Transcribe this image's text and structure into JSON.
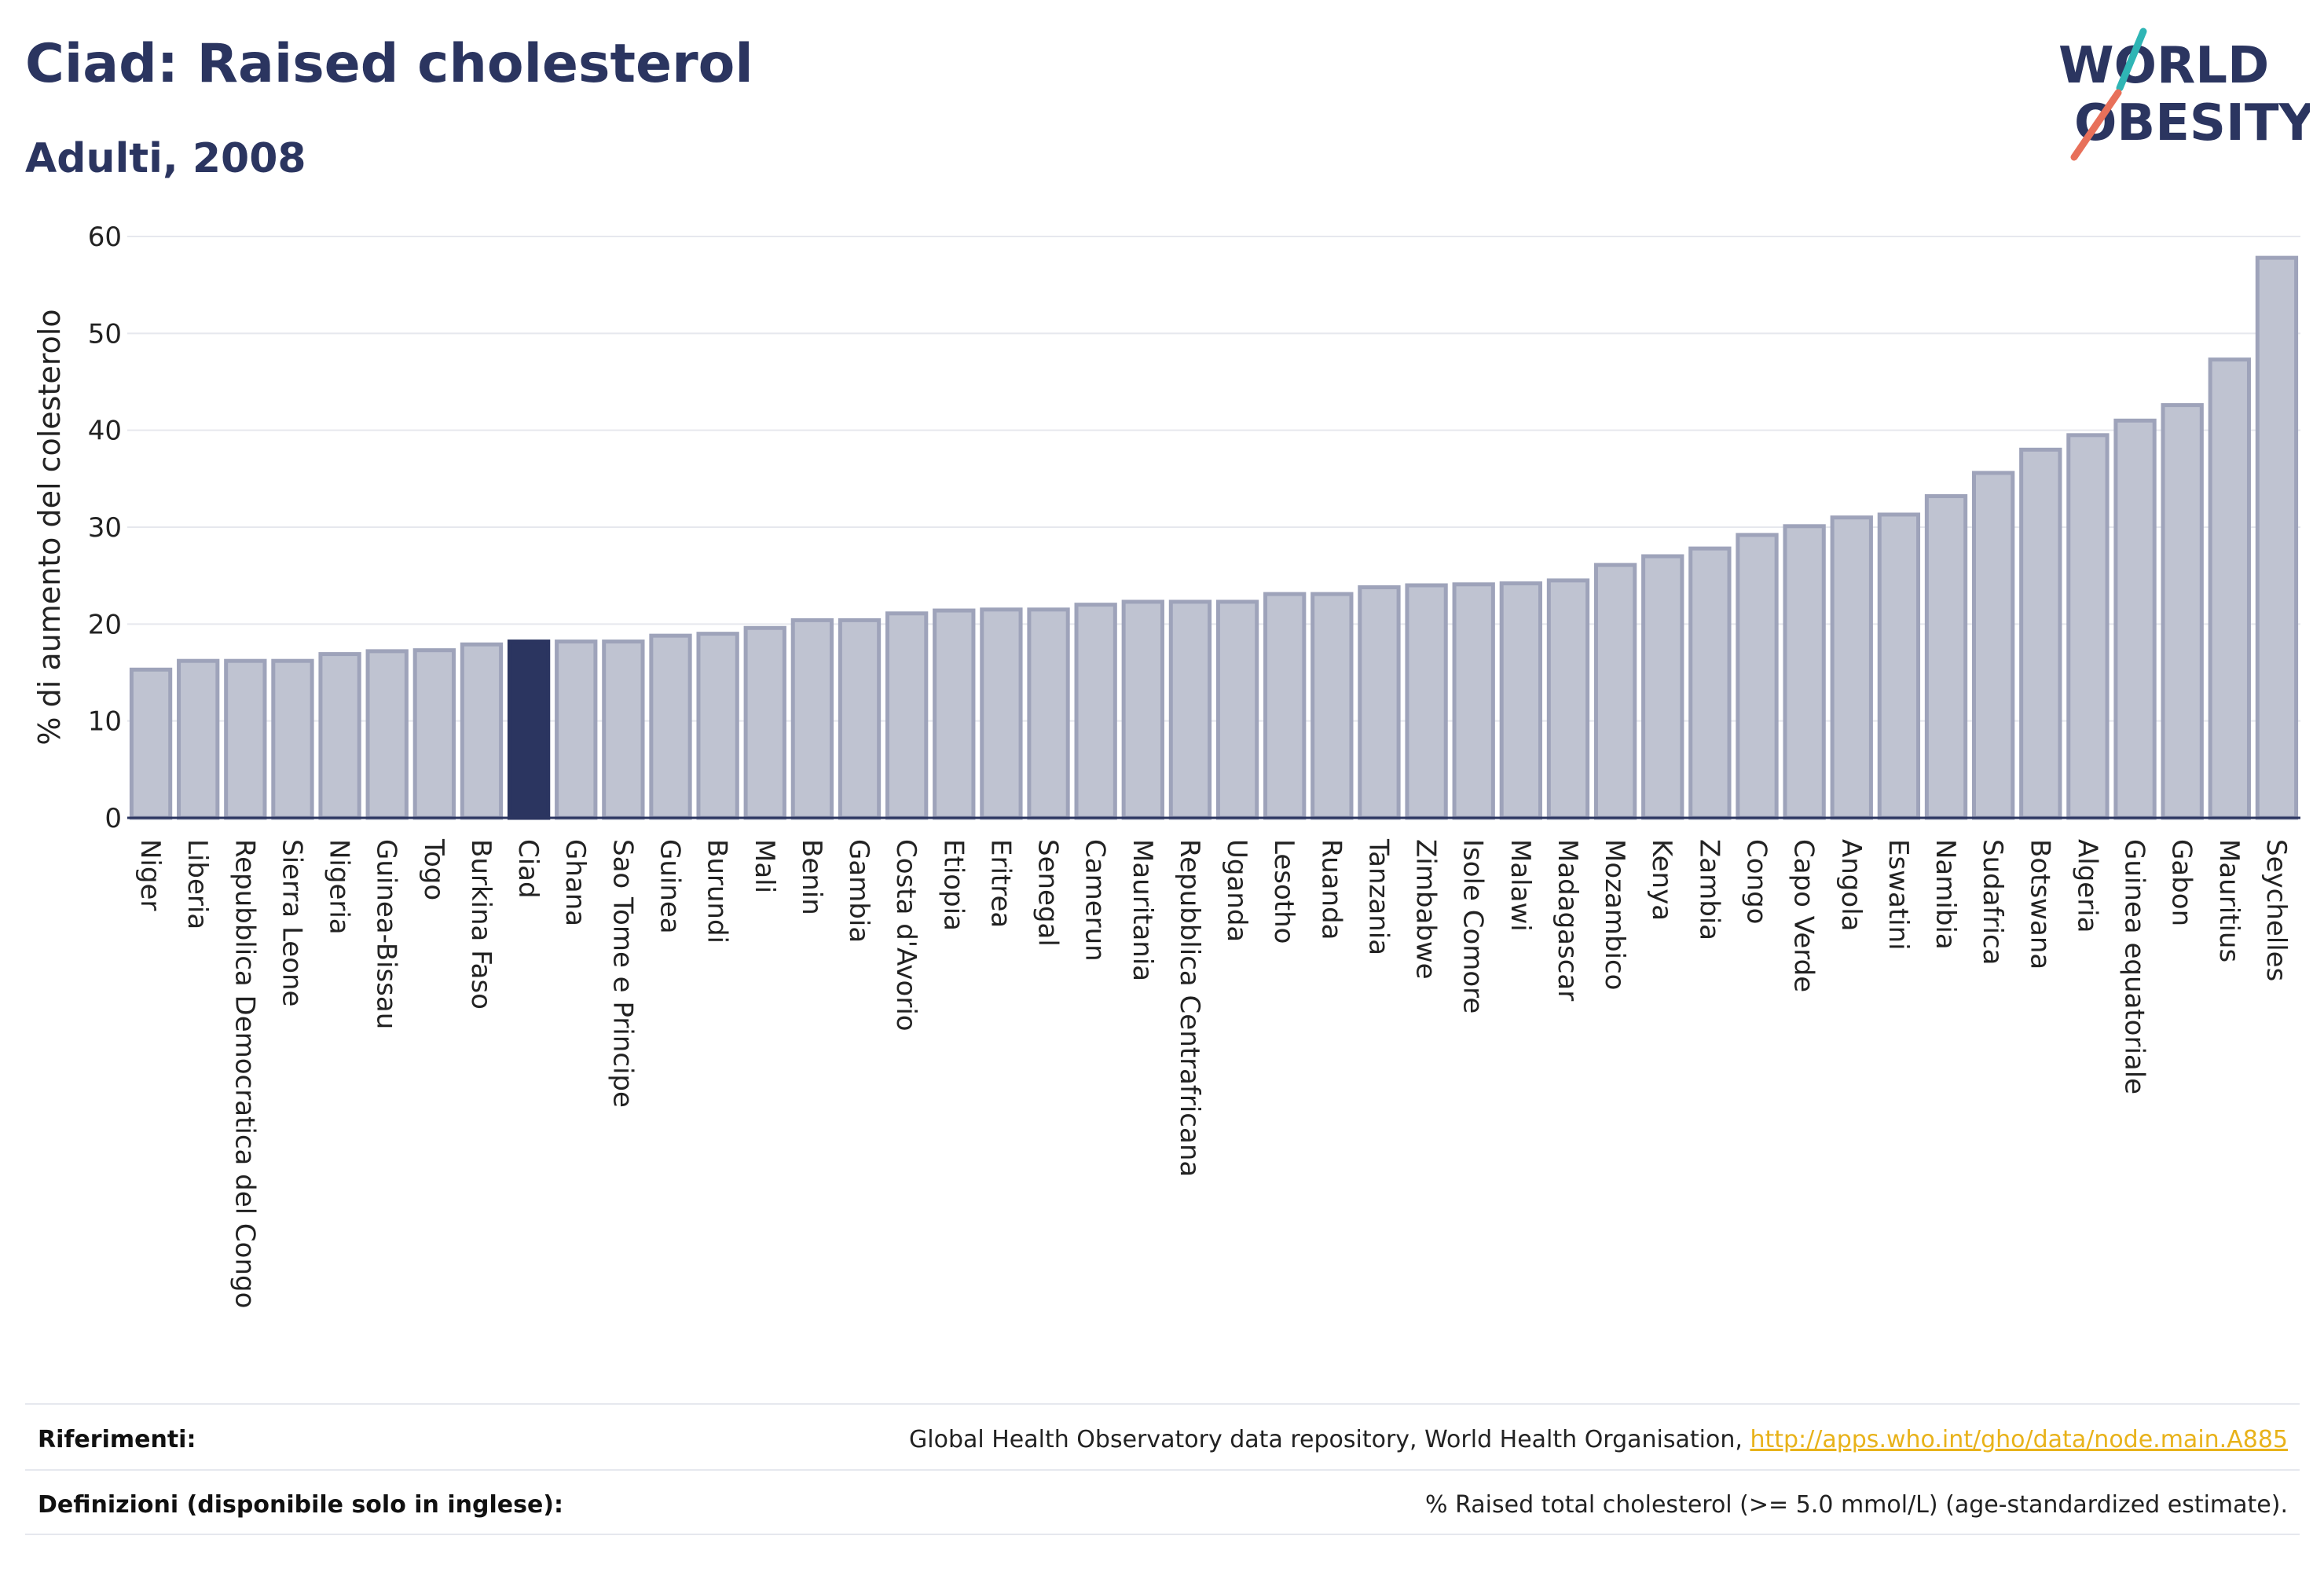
{
  "header": {
    "title": "Ciad: Raised cholesterol",
    "subtitle": "Adulti, 2008"
  },
  "logo": {
    "line1": "WORLD",
    "line2": "OBESITY"
  },
  "colors": {
    "bar": "#bfc3d1",
    "bar_stroke": "#9ea3ba",
    "highlight": "#2b3560",
    "grid": "#e6e8ee",
    "link": "#e8b21a",
    "logo_teal": "#2fb5b5",
    "logo_coral": "#e8705a"
  },
  "footer": {
    "references_label": "Riferimenti:",
    "references_text": "Global Health Observatory data repository, World Health Organisation, ",
    "references_link": "http://apps.who.int/gho/data/node.main.A885",
    "definitions_label": "Definizioni (disponibile solo in inglese):",
    "definitions_text": "% Raised total cholesterol (>= 5.0 mmol/L) (age-standardized estimate)."
  },
  "chart_data": {
    "type": "bar",
    "title": "Ciad: Raised cholesterol",
    "subtitle": "Adulti, 2008",
    "xlabel": "",
    "ylabel": "% di aumento del colesterolo",
    "ylim": [
      0,
      60
    ],
    "yticks": [
      0,
      10,
      20,
      30,
      40,
      50,
      60
    ],
    "grid": true,
    "highlight": "Ciad",
    "categories": [
      "Niger",
      "Liberia",
      "Repubblica Democratica del Congo",
      "Sierra Leone",
      "Nigeria",
      "Guinea-Bissau",
      "Togo",
      "Burkina Faso",
      "Ciad",
      "Ghana",
      "Sao Tome e Principe",
      "Guinea",
      "Burundi",
      "Mali",
      "Benin",
      "Gambia",
      "Costa d'Avorio",
      "Etiopia",
      "Eritrea",
      "Senegal",
      "Camerun",
      "Mauritania",
      "Repubblica Centrafricana",
      "Uganda",
      "Lesotho",
      "Ruanda",
      "Tanzania",
      "Zimbabwe",
      "Isole Comore",
      "Malawi",
      "Madagascar",
      "Mozambico",
      "Kenya",
      "Zambia",
      "Congo",
      "Capo Verde",
      "Angola",
      "Eswatini",
      "Namibia",
      "Sudafrica",
      "Botswana",
      "Algeria",
      "Guinea equatoriale",
      "Gabon",
      "Mauritius",
      "Seychelles"
    ],
    "values": [
      15.3,
      16.2,
      16.2,
      16.2,
      16.9,
      17.2,
      17.3,
      17.9,
      18.2,
      18.2,
      18.2,
      18.8,
      19.0,
      19.6,
      20.4,
      20.4,
      21.1,
      21.4,
      21.5,
      21.5,
      22.0,
      22.3,
      22.3,
      22.3,
      23.1,
      23.1,
      23.8,
      24.0,
      24.1,
      24.2,
      24.5,
      26.1,
      27.0,
      27.8,
      29.2,
      30.1,
      31.0,
      31.3,
      33.2,
      35.6,
      38.0,
      39.5,
      41.0,
      42.6,
      47.3,
      57.8
    ]
  }
}
